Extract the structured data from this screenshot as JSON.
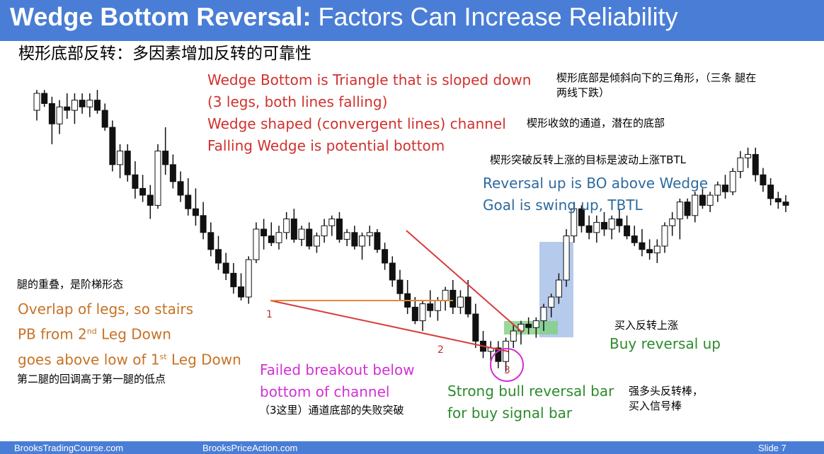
{
  "header": {
    "title_bold": "Wedge Bottom Reversal:",
    "title_rest": " Factors Can Increase Reliability",
    "subtitle": "楔形底部反转：多因素增加反转的可靠性",
    "bg_color": "#4a7ed6"
  },
  "annotations": {
    "wedge_def_1": "Wedge Bottom is Triangle that is sloped down",
    "wedge_def_2": "(3 legs, both lines falling)",
    "wedge_def_3": "Wedge shaped (convergent lines) channel",
    "wedge_def_4": "Falling Wedge is potential bottom",
    "zh_wedge_def_1": "楔形底部是倾斜向下的三角形，（三条 腿在",
    "zh_wedge_def_2": "两线下跌）",
    "zh_channel": "楔形收敛的通道，潜在的底部",
    "zh_target": "楔形突破反转上涨的目标是波动上涨TBTL",
    "reversal_1": "Reversal up is BO above Wedge",
    "reversal_2": "Goal is swing up, TBTL",
    "zh_overlap": "腿的重叠，是阶梯形态",
    "overlap_1": "Overlap of legs, so stairs",
    "overlap_2_pre": "PB from 2",
    "overlap_2_sup": "nd",
    "overlap_2_post": " Leg Down",
    "overlap_3_pre": "goes above low of 1",
    "overlap_3_sup": "st",
    "overlap_3_post": " Leg Down",
    "zh_pb": "第二腿的回调高于第一腿的低点",
    "failed_1": "Failed breakout below",
    "failed_2": "bottom of channel",
    "zh_failed": "（3这里）通道底部的失败突破",
    "strong_1": "Strong bull reversal bar",
    "strong_2": "for buy signal bar",
    "zh_strong_1": "强多头反转棒，",
    "zh_strong_2": "买入信号棒",
    "zh_buy": "买入反转上涨",
    "buy": "Buy reversal up",
    "leg1": "1",
    "leg2": "2",
    "leg3": "3"
  },
  "footer": {
    "left": "BrooksTradingCourse.com",
    "middle": "BrooksPriceAction.com",
    "slide": "Slide  7"
  },
  "colors": {
    "wedge_line": "#d93a3a",
    "overlap_line": "#e08a3a",
    "circle": "#d231d2",
    "highlight_box": "#9db8e6",
    "signal_box": "#7fcf7f"
  },
  "chart_data": {
    "type": "candlestick",
    "note": "values are price units read from pixel positions (higher = higher price)",
    "candles": [
      {
        "o": 60,
        "h": 72,
        "l": 54,
        "c": 70
      },
      {
        "o": 70,
        "h": 72,
        "l": 62,
        "c": 64
      },
      {
        "o": 64,
        "h": 68,
        "l": 40,
        "c": 52
      },
      {
        "o": 52,
        "h": 66,
        "l": 46,
        "c": 62
      },
      {
        "o": 62,
        "h": 70,
        "l": 55,
        "c": 60
      },
      {
        "o": 60,
        "h": 70,
        "l": 52,
        "c": 66
      },
      {
        "o": 66,
        "h": 70,
        "l": 58,
        "c": 62
      },
      {
        "o": 62,
        "h": 70,
        "l": 56,
        "c": 66
      },
      {
        "o": 66,
        "h": 72,
        "l": 58,
        "c": 60
      },
      {
        "o": 60,
        "h": 64,
        "l": 48,
        "c": 50
      },
      {
        "o": 50,
        "h": 54,
        "l": 24,
        "c": 28
      },
      {
        "o": 28,
        "h": 40,
        "l": 20,
        "c": 36
      },
      {
        "o": 36,
        "h": 40,
        "l": 18,
        "c": 22
      },
      {
        "o": 22,
        "h": 30,
        "l": 8,
        "c": 14
      },
      {
        "o": 14,
        "h": 22,
        "l": 6,
        "c": 10
      },
      {
        "o": 10,
        "h": 16,
        "l": -4,
        "c": 4
      },
      {
        "o": 4,
        "h": 40,
        "l": 2,
        "c": 36
      },
      {
        "o": 36,
        "h": 50,
        "l": 22,
        "c": 28
      },
      {
        "o": 28,
        "h": 34,
        "l": 14,
        "c": 18
      },
      {
        "o": 18,
        "h": 24,
        "l": 6,
        "c": 10
      },
      {
        "o": 10,
        "h": 20,
        "l": -2,
        "c": 2
      },
      {
        "o": 2,
        "h": 14,
        "l": -8,
        "c": -2
      },
      {
        "o": -2,
        "h": 6,
        "l": -16,
        "c": -12
      },
      {
        "o": -12,
        "h": -6,
        "l": -26,
        "c": -22
      },
      {
        "o": -22,
        "h": -14,
        "l": -34,
        "c": -30
      },
      {
        "o": -30,
        "h": -24,
        "l": -40,
        "c": -36
      },
      {
        "o": -36,
        "h": -30,
        "l": -48,
        "c": -44
      },
      {
        "o": -44,
        "h": -36,
        "l": -52,
        "c": -50
      },
      {
        "o": -50,
        "h": -26,
        "l": -54,
        "c": -28
      },
      {
        "o": -28,
        "h": -6,
        "l": -30,
        "c": -10
      },
      {
        "o": -10,
        "h": -4,
        "l": -22,
        "c": -14
      },
      {
        "o": -14,
        "h": -6,
        "l": -20,
        "c": -18
      },
      {
        "o": -18,
        "h": -8,
        "l": -22,
        "c": -12
      },
      {
        "o": -12,
        "h": 0,
        "l": -16,
        "c": -4
      },
      {
        "o": -4,
        "h": 2,
        "l": -18,
        "c": -16
      },
      {
        "o": -16,
        "h": -8,
        "l": -20,
        "c": -10
      },
      {
        "o": -10,
        "h": -6,
        "l": -22,
        "c": -20
      },
      {
        "o": -20,
        "h": -12,
        "l": -24,
        "c": -14
      },
      {
        "o": -14,
        "h": -4,
        "l": -18,
        "c": -8
      },
      {
        "o": -8,
        "h": -2,
        "l": -14,
        "c": -4
      },
      {
        "o": -4,
        "h": 0,
        "l": -18,
        "c": -16
      },
      {
        "o": -16,
        "h": -10,
        "l": -20,
        "c": -12
      },
      {
        "o": -12,
        "h": -8,
        "l": -22,
        "c": -20
      },
      {
        "o": -20,
        "h": -12,
        "l": -28,
        "c": -14
      },
      {
        "o": -14,
        "h": -8,
        "l": -20,
        "c": -12
      },
      {
        "o": -12,
        "h": -10,
        "l": -24,
        "c": -22
      },
      {
        "o": -22,
        "h": -18,
        "l": -34,
        "c": -30
      },
      {
        "o": -30,
        "h": -26,
        "l": -44,
        "c": -40
      },
      {
        "o": -40,
        "h": -34,
        "l": -52,
        "c": -48
      },
      {
        "o": -48,
        "h": -40,
        "l": -60,
        "c": -56
      },
      {
        "o": -56,
        "h": -50,
        "l": -66,
        "c": -64
      },
      {
        "o": -64,
        "h": -52,
        "l": -70,
        "c": -54
      },
      {
        "o": -54,
        "h": -46,
        "l": -62,
        "c": -58
      },
      {
        "o": -58,
        "h": -50,
        "l": -64,
        "c": -52
      },
      {
        "o": -52,
        "h": -44,
        "l": -58,
        "c": -46
      },
      {
        "o": -46,
        "h": -40,
        "l": -60,
        "c": -56
      },
      {
        "o": -56,
        "h": -46,
        "l": -60,
        "c": -50
      },
      {
        "o": -50,
        "h": -40,
        "l": -62,
        "c": -60
      },
      {
        "o": -60,
        "h": -54,
        "l": -80,
        "c": -76
      },
      {
        "o": -76,
        "h": -70,
        "l": -86,
        "c": -82
      },
      {
        "o": -82,
        "h": -76,
        "l": -88,
        "c": -80
      },
      {
        "o": -80,
        "h": -76,
        "l": -92,
        "c": -88
      },
      {
        "o": -88,
        "h": -74,
        "l": -94,
        "c": -76
      },
      {
        "o": -76,
        "h": -66,
        "l": -80,
        "c": -70
      },
      {
        "o": -70,
        "h": -64,
        "l": -78,
        "c": -66
      },
      {
        "o": -66,
        "h": -62,
        "l": -72,
        "c": -68
      },
      {
        "o": -68,
        "h": -62,
        "l": -74,
        "c": -64
      },
      {
        "o": -64,
        "h": -54,
        "l": -70,
        "c": -56
      },
      {
        "o": -56,
        "h": -48,
        "l": -62,
        "c": -50
      },
      {
        "o": -50,
        "h": -36,
        "l": -54,
        "c": -40
      },
      {
        "o": -40,
        "h": -10,
        "l": -44,
        "c": -14
      },
      {
        "o": -14,
        "h": 6,
        "l": -18,
        "c": 2
      },
      {
        "o": 2,
        "h": 4,
        "l": -12,
        "c": -8
      },
      {
        "o": -8,
        "h": -2,
        "l": -16,
        "c": -12
      },
      {
        "o": -12,
        "h": -2,
        "l": -18,
        "c": -6
      },
      {
        "o": -6,
        "h": 0,
        "l": -14,
        "c": -10
      },
      {
        "o": -10,
        "h": -2,
        "l": -16,
        "c": -4
      },
      {
        "o": -4,
        "h": 2,
        "l": -12,
        "c": -8
      },
      {
        "o": -8,
        "h": -2,
        "l": -16,
        "c": -14
      },
      {
        "o": -14,
        "h": -8,
        "l": -20,
        "c": -18
      },
      {
        "o": -18,
        "h": -10,
        "l": -26,
        "c": -22
      },
      {
        "o": -22,
        "h": -16,
        "l": -28,
        "c": -24
      },
      {
        "o": -24,
        "h": -16,
        "l": -30,
        "c": -20
      },
      {
        "o": -20,
        "h": -6,
        "l": -24,
        "c": -8
      },
      {
        "o": -8,
        "h": 0,
        "l": -14,
        "c": -4
      },
      {
        "o": -4,
        "h": 8,
        "l": -16,
        "c": 6
      },
      {
        "o": 6,
        "h": 8,
        "l": -4,
        "c": -2
      },
      {
        "o": -2,
        "h": 12,
        "l": -6,
        "c": 10
      },
      {
        "o": 10,
        "h": 14,
        "l": 2,
        "c": 4
      },
      {
        "o": 4,
        "h": 12,
        "l": 0,
        "c": 10
      },
      {
        "o": 10,
        "h": 18,
        "l": 6,
        "c": 16
      },
      {
        "o": 16,
        "h": 22,
        "l": 8,
        "c": 12
      },
      {
        "o": 12,
        "h": 26,
        "l": 10,
        "c": 24
      },
      {
        "o": 24,
        "h": 36,
        "l": 20,
        "c": 32
      },
      {
        "o": 32,
        "h": 38,
        "l": 26,
        "c": 34
      },
      {
        "o": 34,
        "h": 38,
        "l": 18,
        "c": 22
      },
      {
        "o": 22,
        "h": 26,
        "l": 12,
        "c": 16
      },
      {
        "o": 16,
        "h": 20,
        "l": 4,
        "c": 8
      },
      {
        "o": 8,
        "h": 12,
        "l": 2,
        "c": 6
      },
      {
        "o": 6,
        "h": 10,
        "l": 0,
        "c": 4
      }
    ]
  }
}
